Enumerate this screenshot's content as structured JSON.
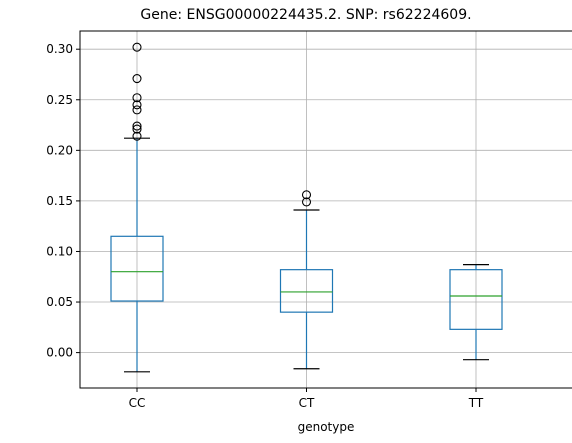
{
  "chart_data": {
    "type": "box",
    "title": "Gene: ENSG00000224435.2. SNP: rs62224609.",
    "xlabel": "genotype",
    "ylabel": "",
    "ylim": [
      -0.035,
      0.318
    ],
    "yticks": [
      0.0,
      0.05,
      0.1,
      0.15,
      0.2,
      0.25,
      0.3
    ],
    "ytick_labels": [
      "0.00",
      "0.05",
      "0.10",
      "0.15",
      "0.20",
      "0.25",
      "0.30"
    ],
    "grid": true,
    "categories": [
      "CC",
      "CT",
      "TT"
    ],
    "boxes": [
      {
        "category": "CC",
        "whisker_low": -0.019,
        "q1": 0.051,
        "median": 0.08,
        "q3": 0.115,
        "whisker_high": 0.212,
        "outliers": [
          0.214,
          0.221,
          0.224,
          0.24,
          0.245,
          0.252,
          0.271,
          0.302
        ]
      },
      {
        "category": "CT",
        "whisker_low": -0.016,
        "q1": 0.04,
        "median": 0.06,
        "q3": 0.082,
        "whisker_high": 0.141,
        "outliers": [
          0.149,
          0.156
        ]
      },
      {
        "category": "TT",
        "whisker_low": -0.007,
        "q1": 0.023,
        "median": 0.056,
        "q3": 0.082,
        "whisker_high": 0.087,
        "outliers": []
      }
    ],
    "colors": {
      "box": "#1f77b4",
      "median": "#2ca02c",
      "whisker_cap": "#000000",
      "outlier": "#000000",
      "grid": "#b0b0b0",
      "axes": "#000000"
    }
  }
}
